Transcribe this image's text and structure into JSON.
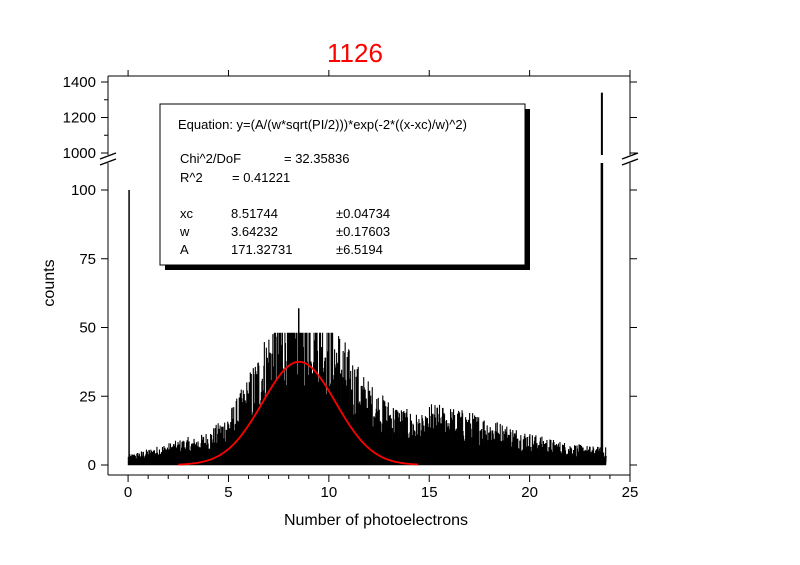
{
  "chart_data": {
    "type": "bar",
    "title": "1126",
    "title_color": "#ff0000",
    "xlabel": "Number of photoelectrons",
    "ylabel": "counts",
    "xlim": [
      -1,
      25
    ],
    "ylim_lower": [
      0,
      110
    ],
    "ylim_upper": [
      1000,
      1400
    ],
    "x_ticks": [
      "0",
      "5",
      "10",
      "15",
      "20",
      "25"
    ],
    "y_ticks_lower": [
      "0",
      "25",
      "50",
      "75",
      "100"
    ],
    "y_ticks_upper": [
      "1000",
      "1200",
      "1400"
    ],
    "axis_break": true,
    "grid": false,
    "histogram": {
      "bin_width": 0.025,
      "x_range": [
        0,
        23.8
      ],
      "color": "#000000",
      "notable_values": [
        {
          "x": 0.05,
          "y": 100
        },
        {
          "x": 8.5,
          "y": 57
        },
        {
          "x": 23.6,
          "y": 1340
        }
      ]
    },
    "fit": {
      "color": "#ff0000",
      "model": "gauss",
      "x_range": [
        2.5,
        14.5
      ],
      "xc": 8.51744,
      "w": 3.64232,
      "A": 171.32731
    },
    "annotation": {
      "equation": "Equation: y=(A/(w*sqrt(PI/2)))*exp(-2*((x-xc)/w)^2)",
      "chi2_label": "Chi^2/DoF",
      "chi2_value": "= 32.35836",
      "r2_label": "R^2",
      "r2_value": "=  0.41221",
      "params": [
        {
          "name": "xc",
          "value": "8.51744",
          "error": "±0.04734"
        },
        {
          "name": "w",
          "value": "3.64232",
          "error": "±0.17603"
        },
        {
          "name": "A",
          "value": "171.32731",
          "error": "±6.5194"
        }
      ]
    }
  }
}
